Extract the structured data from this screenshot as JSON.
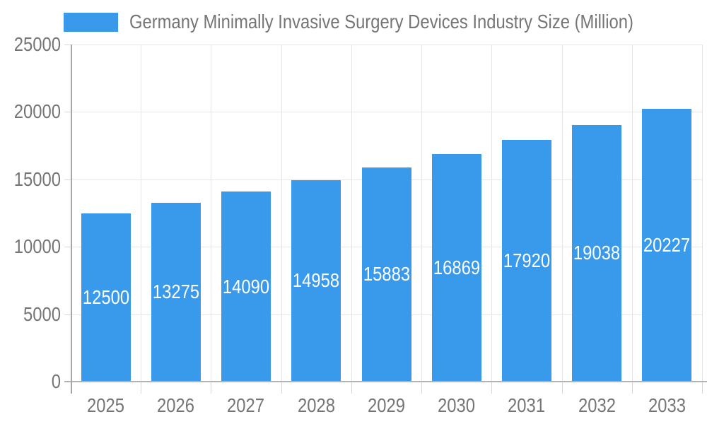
{
  "legend": {
    "label": "Germany Minimally Invasive Surgery Devices Industry Size (Million)"
  },
  "chart_data": {
    "type": "bar",
    "title": "Germany Minimally Invasive Surgery Devices Industry Size (Million)",
    "categories": [
      "2025",
      "2026",
      "2027",
      "2028",
      "2029",
      "2030",
      "2031",
      "2032",
      "2033"
    ],
    "values": [
      12500,
      13275,
      14090,
      14958,
      15883,
      16869,
      17920,
      19038,
      20227
    ],
    "value_labels_shown": [
      "12500",
      "13275",
      "14090",
      "14958",
      "15883",
      "16869",
      "17920",
      "19038",
      "20227"
    ],
    "xlabel": "",
    "ylabel": "",
    "ylim": [
      0,
      25000
    ],
    "yticks": [
      0,
      5000,
      10000,
      15000,
      20000,
      25000
    ],
    "ytick_labels": [
      "0",
      "5000",
      "10000",
      "15000",
      "20000",
      "25000"
    ],
    "grid": true,
    "legend_position": "top-left",
    "value_label_position": "inside-middle"
  },
  "colors": {
    "bar": "#3999EA",
    "axis_text": "#757575",
    "value_label_text": "#ffffff",
    "gridline": "#e6e6e6",
    "tick": "#d6d6d6",
    "axis_line": "#a6a6a6",
    "baseline": "#b3b3b3",
    "background": "#ffffff"
  }
}
